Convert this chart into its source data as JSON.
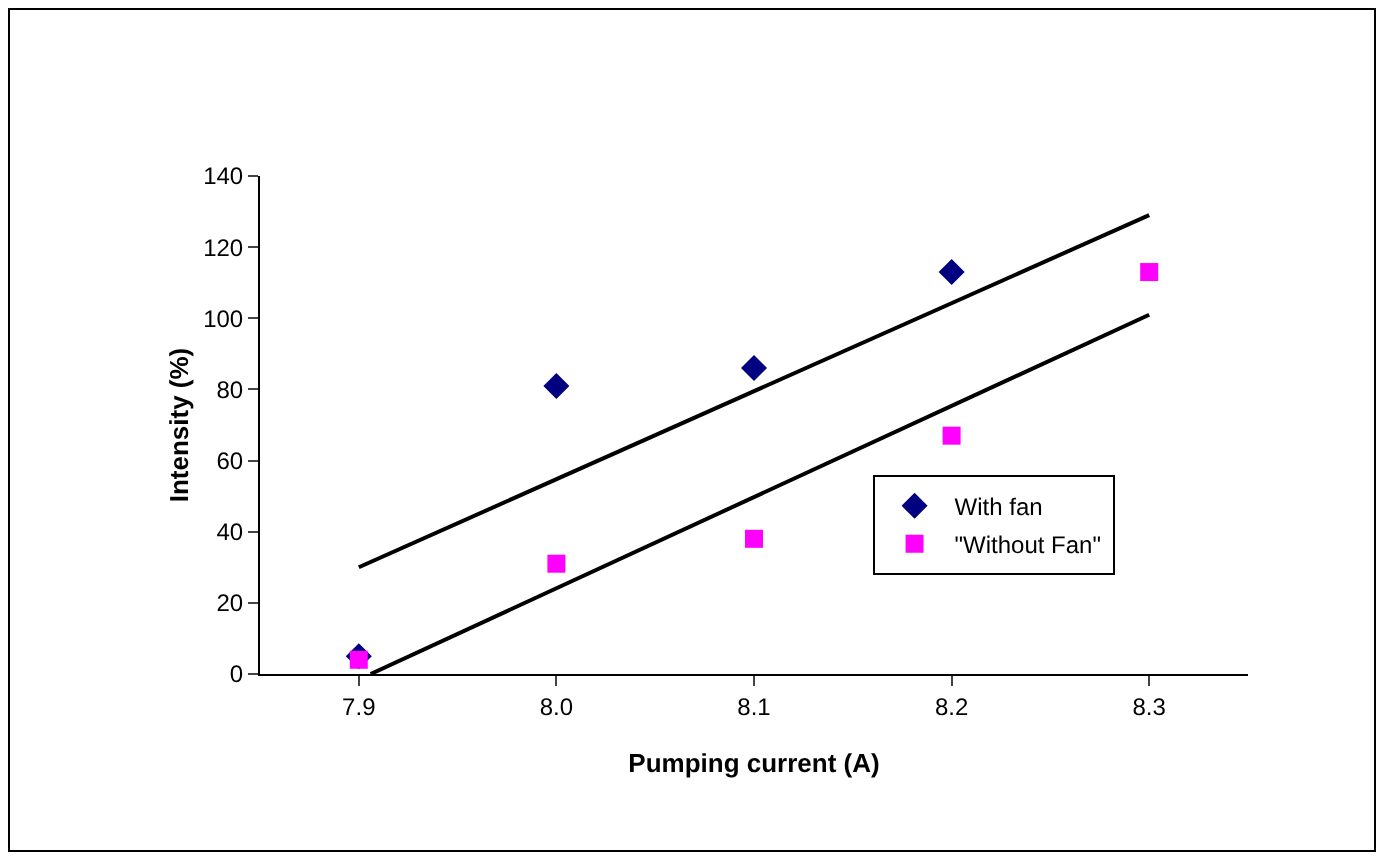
{
  "chart_data": {
    "type": "scatter",
    "xlabel": "Pumping current (A)",
    "ylabel": "Intensity (%)",
    "xlim": [
      7.85,
      8.35
    ],
    "xticks": [
      {
        "value": 7.9,
        "label": "7.9"
      },
      {
        "value": 8.0,
        "label": "8.0"
      },
      {
        "value": 8.1,
        "label": "8.1"
      },
      {
        "value": 8.2,
        "label": "8.2"
      },
      {
        "value": 8.3,
        "label": "8.3"
      }
    ],
    "ylim": [
      0,
      140
    ],
    "yticks": [
      0,
      20,
      40,
      60,
      80,
      100,
      120,
      140
    ],
    "grid": false,
    "legend": "bottom right",
    "series": [
      {
        "name": "With fan",
        "color": "#000080",
        "marker": "diamond",
        "x": [
          7.9,
          8.0,
          8.1,
          8.2
        ],
        "values": [
          5,
          81,
          86,
          113
        ]
      },
      {
        "name": "\"Without Fan\"",
        "color": "#ff00ff",
        "marker": "square",
        "x": [
          7.9,
          8.0,
          8.1,
          8.2,
          8.3
        ],
        "values": [
          4,
          31,
          38,
          67,
          113
        ]
      },
      {
        "type": "line",
        "color": "#000000",
        "marker": "none",
        "x": [
          7.9,
          8.3
        ],
        "values": [
          30,
          129
        ]
      },
      {
        "type": "line",
        "color": "#000000",
        "marker": "none",
        "x": [
          7.906,
          8.3
        ],
        "values": [
          0,
          101
        ]
      }
    ]
  }
}
